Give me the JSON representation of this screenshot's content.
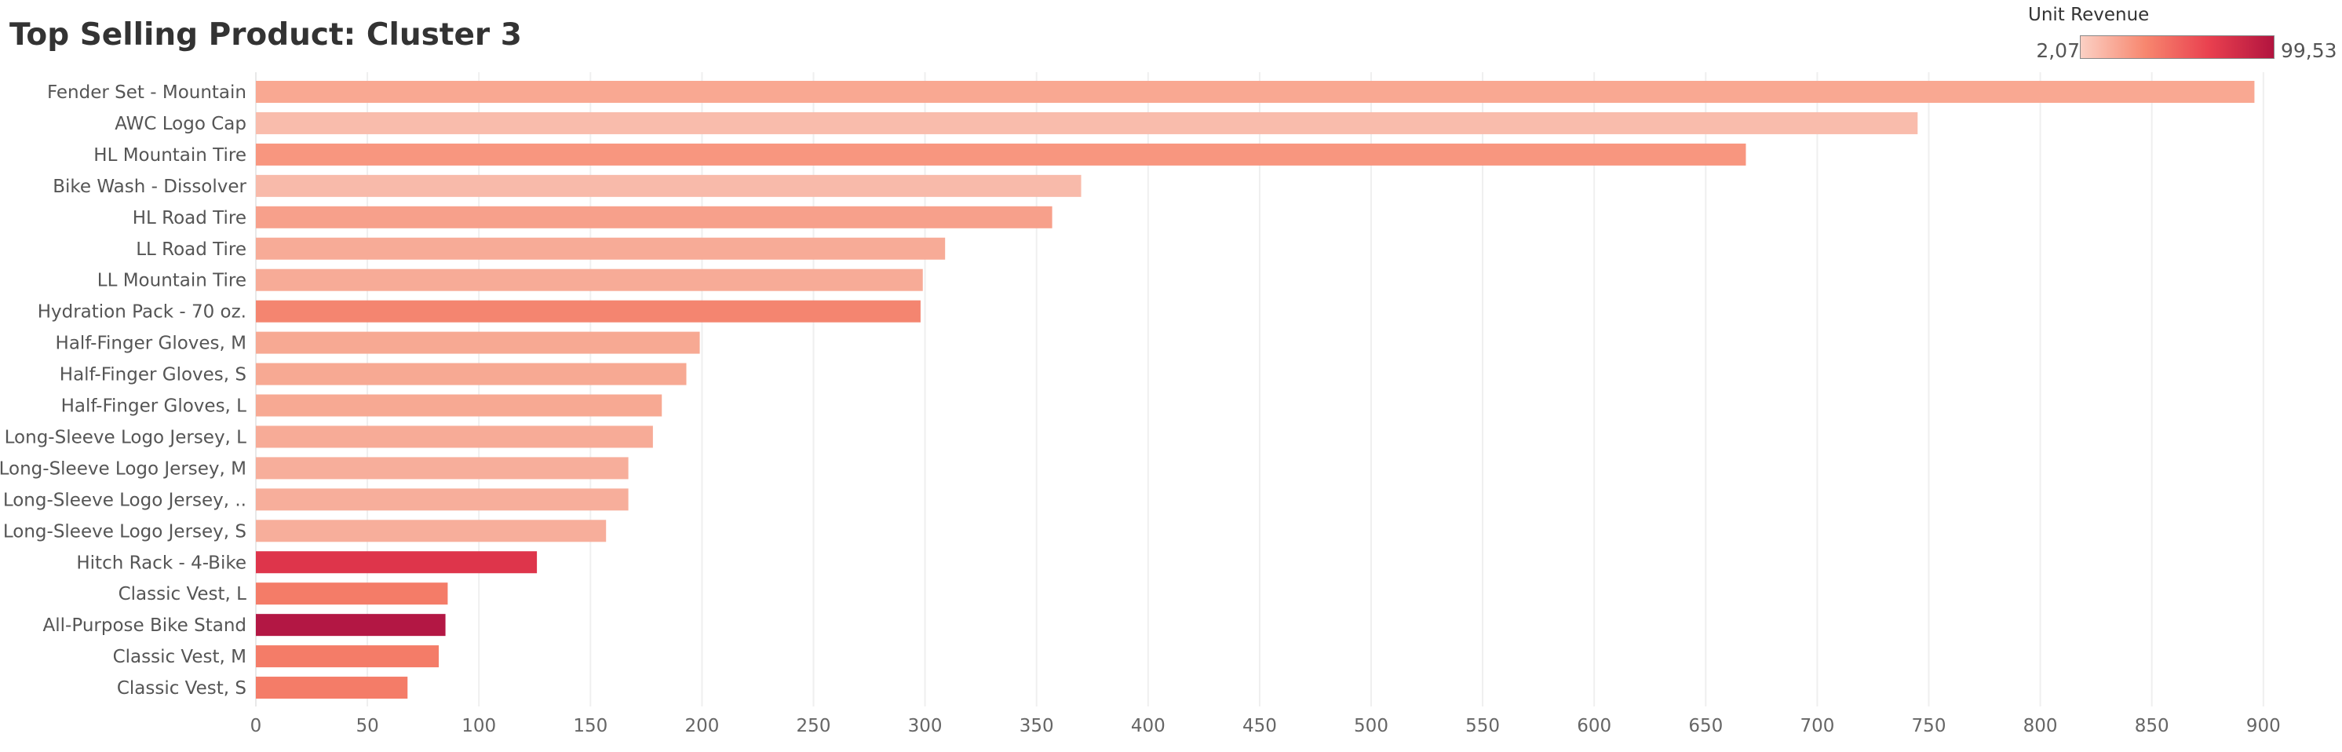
{
  "chart_data": {
    "type": "bar",
    "orientation": "horizontal",
    "title": "Top Selling Product: Cluster 3",
    "xlabel": "",
    "ylabel": "",
    "xlim": [
      0,
      930
    ],
    "ticks": [
      0,
      50,
      100,
      150,
      200,
      250,
      300,
      350,
      400,
      450,
      500,
      550,
      600,
      650,
      700,
      750,
      800,
      850,
      900
    ],
    "grid": "vertical",
    "categories": [
      "Fender Set - Mountain",
      "AWC Logo Cap",
      "HL Mountain Tire",
      "Bike Wash - Dissolver",
      "HL Road Tire",
      "LL Road Tire",
      "LL Mountain Tire",
      "Hydration Pack - 70 oz.",
      "Half-Finger Gloves, M",
      "Half-Finger Gloves, S",
      "Half-Finger Gloves, L",
      "Long-Sleeve Logo Jersey, L",
      "Long-Sleeve Logo Jersey, M",
      "Long-Sleeve Logo Jersey, ..",
      "Long-Sleeve Logo Jersey, S",
      "Hitch Rack - 4-Bike",
      "Classic Vest, L",
      "All-Purpose Bike Stand",
      "Classic Vest, M",
      "Classic Vest, S"
    ],
    "values": [
      896,
      745,
      668,
      370,
      357,
      309,
      299,
      298,
      199,
      193,
      182,
      178,
      167,
      167,
      157,
      126,
      86,
      85,
      82,
      68
    ],
    "colors": [
      "#f9a892",
      "#f9bcac",
      "#f8967f",
      "#f8baaa",
      "#f7a08b",
      "#f7ab97",
      "#f7ab97",
      "#f48570",
      "#f7a993",
      "#f7a993",
      "#f7a993",
      "#f7ab97",
      "#f7ae9b",
      "#f7ae9b",
      "#f7ae9b",
      "#de354b",
      "#f47c68",
      "#b31744",
      "#f47c68",
      "#f47c68"
    ],
    "color_legend": {
      "title": "Unit Revenue",
      "min_label": "2,07",
      "max_label": "99,53",
      "ramp_colors": [
        "#fbd0c4",
        "#f7876f",
        "#e9404f",
        "#b2143f"
      ]
    }
  }
}
